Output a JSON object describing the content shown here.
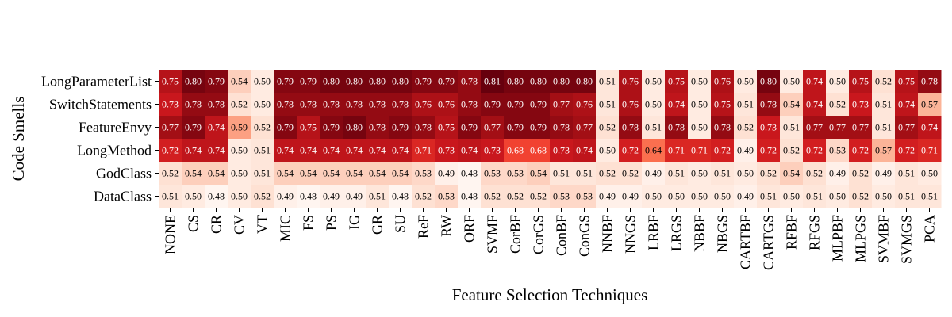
{
  "chart_data": {
    "type": "heatmap",
    "title": "",
    "xlabel": "Feature Selection Techniques",
    "ylabel": "Code Smells",
    "colormap": "Reds",
    "value_range": [
      0.48,
      0.81
    ],
    "x_categories": [
      "NONE",
      "CS",
      "CR",
      "CV",
      "VT",
      "MIC",
      "FS",
      "PS",
      "IG",
      "GR",
      "SU",
      "ReF",
      "RW",
      "ORF",
      "SVMF",
      "CorBF",
      "CorGS",
      "ConBF",
      "ConGS",
      "NNBF",
      "NNGS",
      "LRBF",
      "LRGS",
      "NBBF",
      "NBGS",
      "CARTBF",
      "CARTGS",
      "RFBF",
      "RFGS",
      "MLPBF",
      "MLPGS",
      "SVMBF",
      "SVMGS",
      "PCA"
    ],
    "y_categories": [
      "LongParameterList",
      "SwitchStatements",
      "FeatureEnvy",
      "LongMethod",
      "GodClass",
      "DataClass"
    ],
    "values": [
      [
        0.75,
        0.8,
        0.79,
        0.54,
        0.5,
        0.79,
        0.79,
        0.8,
        0.8,
        0.8,
        0.8,
        0.79,
        0.79,
        0.78,
        0.81,
        0.8,
        0.8,
        0.8,
        0.8,
        0.51,
        0.76,
        0.5,
        0.75,
        0.5,
        0.76,
        0.5,
        0.8,
        0.5,
        0.74,
        0.5,
        0.75,
        0.52,
        0.75,
        0.78
      ],
      [
        0.73,
        0.78,
        0.78,
        0.52,
        0.5,
        0.78,
        0.78,
        0.78,
        0.78,
        0.78,
        0.78,
        0.76,
        0.76,
        0.78,
        0.79,
        0.79,
        0.79,
        0.77,
        0.76,
        0.51,
        0.76,
        0.5,
        0.74,
        0.5,
        0.75,
        0.51,
        0.78,
        0.54,
        0.74,
        0.52,
        0.73,
        0.51,
        0.74,
        0.57
      ],
      [
        0.77,
        0.79,
        0.74,
        0.59,
        0.52,
        0.79,
        0.75,
        0.79,
        0.8,
        0.78,
        0.79,
        0.78,
        0.75,
        0.79,
        0.77,
        0.79,
        0.79,
        0.78,
        0.77,
        0.52,
        0.78,
        0.51,
        0.78,
        0.5,
        0.78,
        0.52,
        0.73,
        0.51,
        0.77,
        0.77,
        0.77,
        0.51,
        0.77,
        0.74
      ],
      [
        0.72,
        0.74,
        0.74,
        0.5,
        0.51,
        0.74,
        0.74,
        0.74,
        0.74,
        0.74,
        0.74,
        0.71,
        0.73,
        0.74,
        0.73,
        0.68,
        0.68,
        0.73,
        0.74,
        0.5,
        0.72,
        0.64,
        0.71,
        0.71,
        0.72,
        0.49,
        0.72,
        0.52,
        0.72,
        0.53,
        0.72,
        0.57,
        0.72,
        0.71
      ],
      [
        0.52,
        0.54,
        0.54,
        0.5,
        0.51,
        0.54,
        0.54,
        0.54,
        0.54,
        0.54,
        0.54,
        0.53,
        0.49,
        0.48,
        0.53,
        0.53,
        0.54,
        0.51,
        0.51,
        0.52,
        0.52,
        0.49,
        0.51,
        0.5,
        0.51,
        0.5,
        0.52,
        0.54,
        0.52,
        0.49,
        0.52,
        0.49,
        0.51,
        0.5
      ],
      [
        0.51,
        0.5,
        0.48,
        0.5,
        0.52,
        0.49,
        0.48,
        0.49,
        0.49,
        0.51,
        0.48,
        0.52,
        0.53,
        0.48,
        0.52,
        0.52,
        0.52,
        0.53,
        0.53,
        0.49,
        0.49,
        0.5,
        0.5,
        0.5,
        0.5,
        0.49,
        0.51,
        0.5,
        0.51,
        0.5,
        0.52,
        0.5,
        0.51,
        0.51
      ]
    ]
  }
}
